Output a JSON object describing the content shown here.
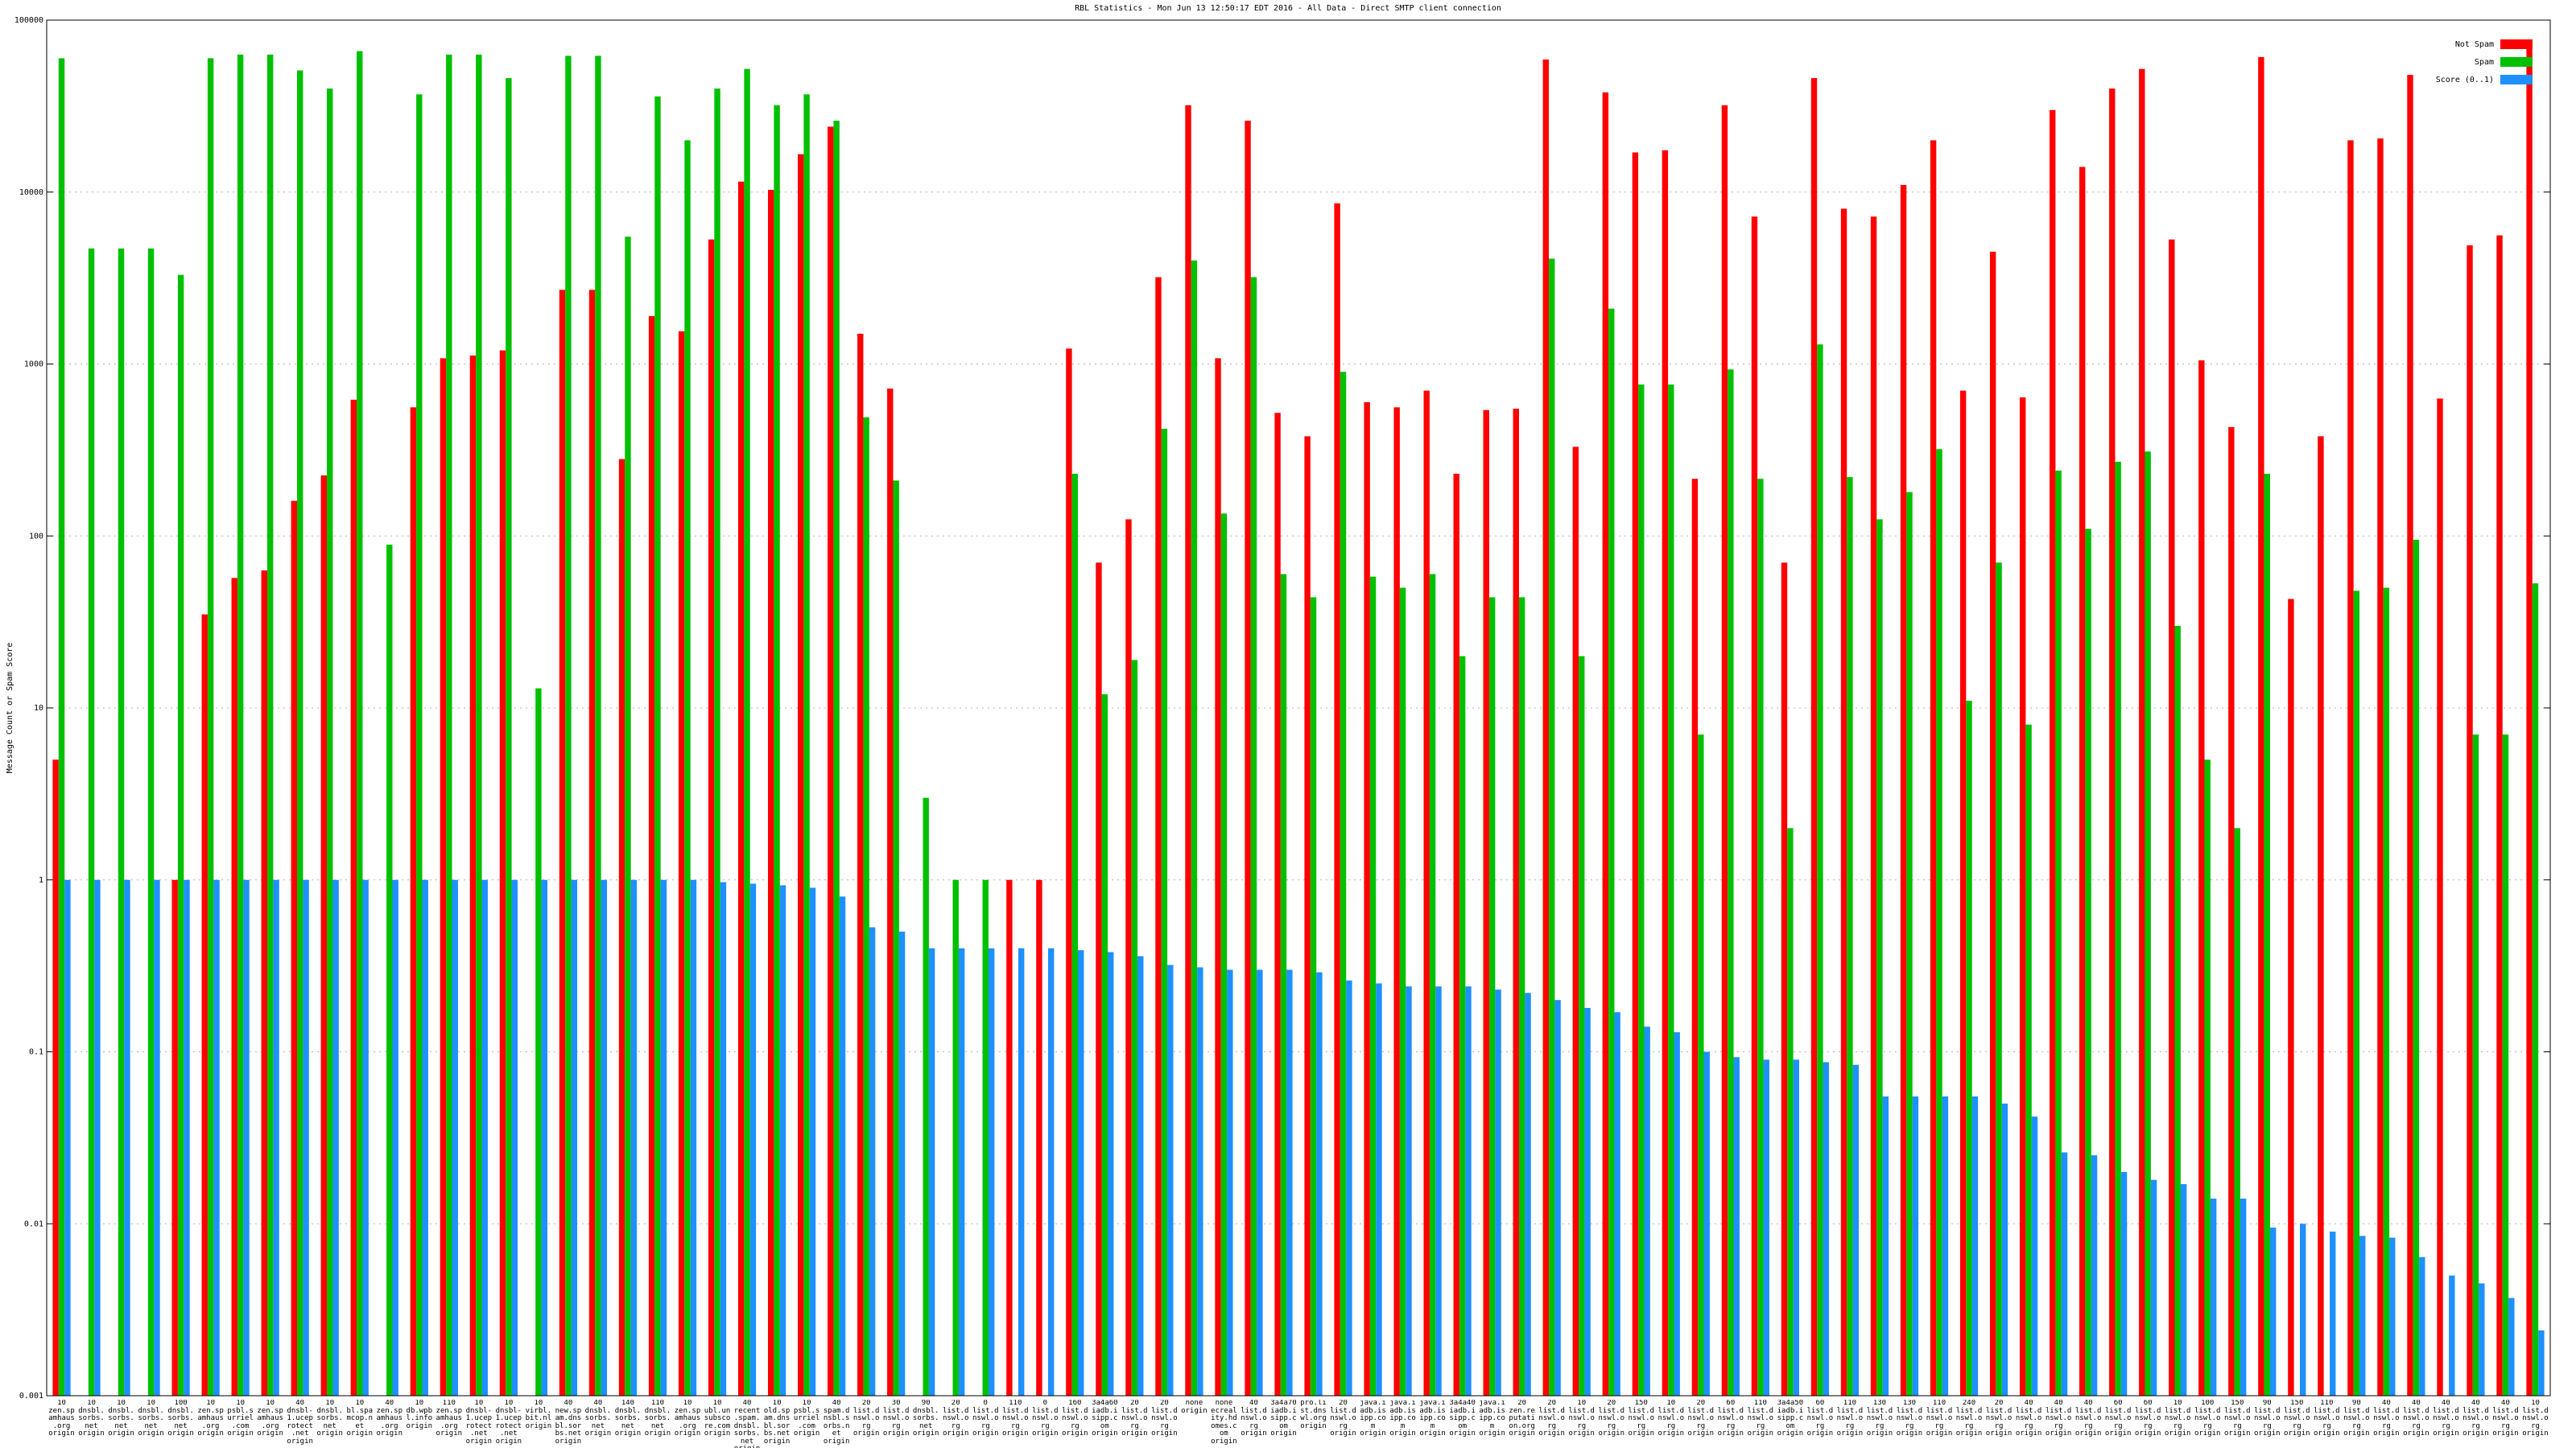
{
  "chart_data": {
    "type": "bar",
    "title": "RBL Statistics - Mon Jun 13 12:50:17 EDT 2016 - All Data - Direct SMTP client connection",
    "y_label": "Message Count or Spam Score",
    "log_scale": true,
    "grid": true,
    "legend": "upper right",
    "ylim": [
      0.001,
      100000
    ],
    "yticks": [
      100000,
      10000,
      1000,
      100,
      10,
      1,
      0.1,
      0.01,
      0.001
    ],
    "categories": [
      "10 zen.spamhaus.org origin",
      "10 dnsbl.sorbs.net origin",
      "10 dnsbl.sorbs.net origin",
      "10 dnsbl.sorbs.net origin",
      "100 dnsbl.sorbs.net origin",
      "10 zen.spamhaus.org origin",
      "10 psbl.surriel.com origin",
      "10 zen.spamhaus.org origin",
      "40 dnsbl-1.uceprotect.net origin",
      "10 dnsbl.sorbs.net origin",
      "10 bl.spamcop.net origin",
      "40 zen.spamhaus.org origin",
      "10 db.wpbl.info origin",
      "110 zen.spamhaus.org origin",
      "10 dnsbl-1.uceprotect.net origin",
      "10 dnsbl-1.uceprotect.net origin",
      "10 virbl.bit.nl origin",
      "40 new.spam.dnsbl.sorbs.net origin",
      "40 dnsbl.sorbs.net origin",
      "140 dnsbl.sorbs.net origin",
      "110 dnsbl.sorbs.net origin",
      "10 zen.spamhaus.org origin",
      "10 ubl.unsubscore.com origin",
      "40 recent.spam.dnsbl.sorbs.net origin",
      "10 old.spam.dnsbl.sorbs.net origin",
      "10 psbl.surriel.com origin",
      "40 spam.dnsbl.sorbs.net origin",
      "20 list.dnswl.org origin",
      "30 list.dnswl.org origin",
      "90 dnsbl.sorbs.net origin",
      "20 list.dnswl.org origin",
      "0 list.dnswl.org origin",
      "110 list.dnswl.org origin",
      "0 list.dnswl.org origin",
      "160 list.dnswl.org origin",
      "3a4a60 iadb.isipp.com origin",
      "20 list.dnswl.org origin",
      "20 list.dnswl.org origin",
      "none origin",
      "none ecreality.hdomes.com origin",
      "40 list.dnswl.org origin",
      "3a4a70 iadb.isipp.com origin",
      "pro.list.dnswl.org origin",
      "20 list.dnswl.org origin",
      "java.iadb.isipp.com origin",
      "java.iadb.isipp.com origin",
      "java.iadb.isipp.com origin",
      "3a4a40 iadb.isipp.com origin",
      "java.iadb.isipp.com origin",
      "20 zen.reputation.org origin",
      "20 list.dnswl.org origin",
      "10 list.dnswl.org origin",
      "20 list.dnswl.org origin",
      "150 list.dnswl.org origin",
      "10 list.dnswl.org origin",
      "20 list.dnswl.org origin",
      "60 list.dnswl.org origin",
      "110 list.dnswl.org origin",
      "3a4a50 iadb.isipp.com origin",
      "60 list.dnswl.org origin",
      "110 list.dnswl.org origin",
      "130 list.dnswl.org origin",
      "130 list.dnswl.org origin",
      "110 list.dnswl.org origin",
      "240 list.dnswl.org origin",
      "20 list.dnswl.org origin",
      "40 list.dnswl.org origin",
      "40 list.dnswl.org origin",
      "40 list.dnswl.org origin",
      "60 list.dnswl.org origin",
      "60 list.dnswl.org origin",
      "10 list.dnswl.org origin",
      "100 list.dnswl.org origin",
      "150 list.dnswl.org origin",
      "90 list.dnswl.org origin",
      "150 list.dnswl.org origin",
      "110 list.dnswl.org origin",
      "90 list.dnswl.org origin",
      "40 list.dnswl.org origin",
      "40 list.dnswl.org origin",
      "40 list.dnswl.org origin",
      "40 list.dnswl.org origin",
      "40 list.dnswl.org origin",
      "10 list.dnswl.org origin"
    ],
    "series": [
      {
        "name": "Not Spam",
        "color": "#ff0000",
        "values": [
          5,
          null,
          null,
          null,
          1,
          35,
          57,
          63,
          160,
          225,
          620,
          null,
          560,
          1080,
          1120,
          1200,
          null,
          2700,
          2700,
          280,
          1900,
          1550,
          5300,
          11500,
          10300,
          16600,
          24000,
          1500,
          720,
          null,
          null,
          null,
          1,
          1,
          1230,
          70,
          125,
          3200,
          32000,
          1080,
          26000,
          520,
          380,
          8600,
          600,
          560,
          700,
          230,
          540,
          550,
          59000,
          330,
          38000,
          17000,
          17500,
          215,
          32000,
          7200,
          70,
          46000,
          8000,
          7200,
          11000,
          20000,
          700,
          4500,
          640,
          30000,
          14000,
          40000,
          52000,
          5300,
          1050,
          430,
          61000,
          43,
          380,
          20000,
          20500,
          48000,
          630,
          4900,
          5600,
          70000
        ]
      },
      {
        "name": "Spam",
        "color": "#00c000",
        "values": [
          60000,
          4700,
          4700,
          4700,
          3300,
          60000,
          63000,
          63000,
          51000,
          40000,
          66000,
          89,
          37000,
          63000,
          63000,
          46000,
          13,
          62000,
          62000,
          5500,
          36000,
          20000,
          40000,
          52000,
          32000,
          37000,
          26000,
          490,
          210,
          3,
          1,
          1,
          null,
          null,
          230,
          12,
          19,
          420,
          4000,
          135,
          3200,
          60,
          44,
          900,
          58,
          50,
          60,
          20,
          44,
          44,
          4100,
          20,
          2100,
          760,
          760,
          7,
          930,
          215,
          2,
          1300,
          220,
          125,
          180,
          320,
          11,
          70,
          8,
          240,
          110,
          270,
          310,
          30,
          5,
          2,
          230,
          null,
          null,
          48,
          50,
          95,
          null,
          7,
          7,
          53
        ]
      },
      {
        "name": "Score (0..1)",
        "color": "#1e90ff",
        "values": [
          1,
          1,
          1,
          1,
          1,
          1,
          1,
          1,
          1,
          1,
          1,
          1,
          1,
          1,
          1,
          1,
          1,
          1,
          1,
          1,
          1,
          1,
          0.97,
          0.95,
          0.93,
          0.9,
          0.8,
          0.53,
          0.5,
          0.4,
          0.4,
          0.4,
          0.4,
          0.4,
          0.39,
          0.38,
          0.36,
          0.32,
          0.31,
          0.3,
          0.3,
          0.3,
          0.29,
          0.26,
          0.25,
          0.24,
          0.24,
          0.24,
          0.23,
          0.22,
          0.2,
          0.18,
          0.17,
          0.14,
          0.13,
          0.1,
          0.093,
          0.09,
          0.09,
          0.087,
          0.084,
          0.055,
          0.055,
          0.055,
          0.055,
          0.05,
          0.042,
          0.026,
          0.025,
          0.02,
          0.018,
          0.017,
          0.014,
          0.014,
          0.0095,
          0.01,
          0.009,
          0.0085,
          0.0083,
          0.0064,
          0.005,
          0.0045,
          0.0037,
          0.0024
        ]
      }
    ]
  }
}
